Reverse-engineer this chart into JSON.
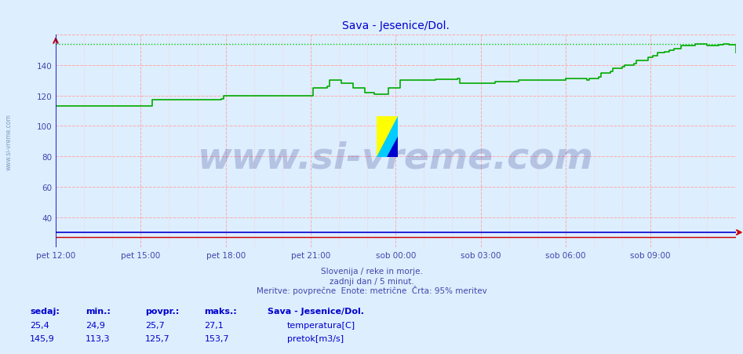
{
  "title": "Sava - Jesenice/Dol.",
  "title_color": "#0000cc",
  "bg_color": "#ddeeff",
  "plot_bg_color": "#ddeeff",
  "xlabel_color": "#4444aa",
  "ylabel_color": "#4444aa",
  "x_tick_labels": [
    "pet 12:00",
    "pet 15:00",
    "pet 18:00",
    "pet 21:00",
    "sob 00:00",
    "sob 03:00",
    "sob 06:00",
    "sob 09:00"
  ],
  "x_tick_positions": [
    0,
    36,
    72,
    108,
    144,
    180,
    216,
    252
  ],
  "ylim": [
    20,
    160
  ],
  "yticks": [
    40,
    60,
    80,
    100,
    120,
    140
  ],
  "xlim": [
    0,
    288
  ],
  "subtitle1": "Slovenija / reke in morje.",
  "subtitle2": "zadnji dan / 5 minut.",
  "subtitle3": "Meritve: povprečne  Enote: metrične  Črta: 95% meritev",
  "subtitle_color": "#4444aa",
  "watermark": "www.si-vreme.com",
  "watermark_color": "#000066",
  "watermark_alpha": 0.18,
  "watermark_fontsize": 34,
  "temp_color": "#cc0000",
  "flow_color": "#00aa00",
  "flow_95pct_color": "#00cc00",
  "temp_95pct_color": "#cc0000",
  "blue_line_color": "#0000cc",
  "legend_title": "Sava - Jesenice/Dol.",
  "legend_color": "#0000cc",
  "legend_temp_label": "temperatura[C]",
  "legend_flow_label": "pretok[m3/s]",
  "stats_headers": [
    "sedaj:",
    "min.:",
    "povpr.:",
    "maks.:"
  ],
  "temp_stats": [
    "25,4",
    "24,9",
    "25,7",
    "27,1"
  ],
  "flow_stats": [
    "145,9",
    "113,3",
    "125,7",
    "153,7"
  ],
  "stats_color": "#0000cc",
  "flow_95pct": 153.7,
  "temp_95pct": 27.1,
  "temp_baseline": 27.0,
  "n_points": 289,
  "ylabel_left_text": "www.si-vreme.com"
}
